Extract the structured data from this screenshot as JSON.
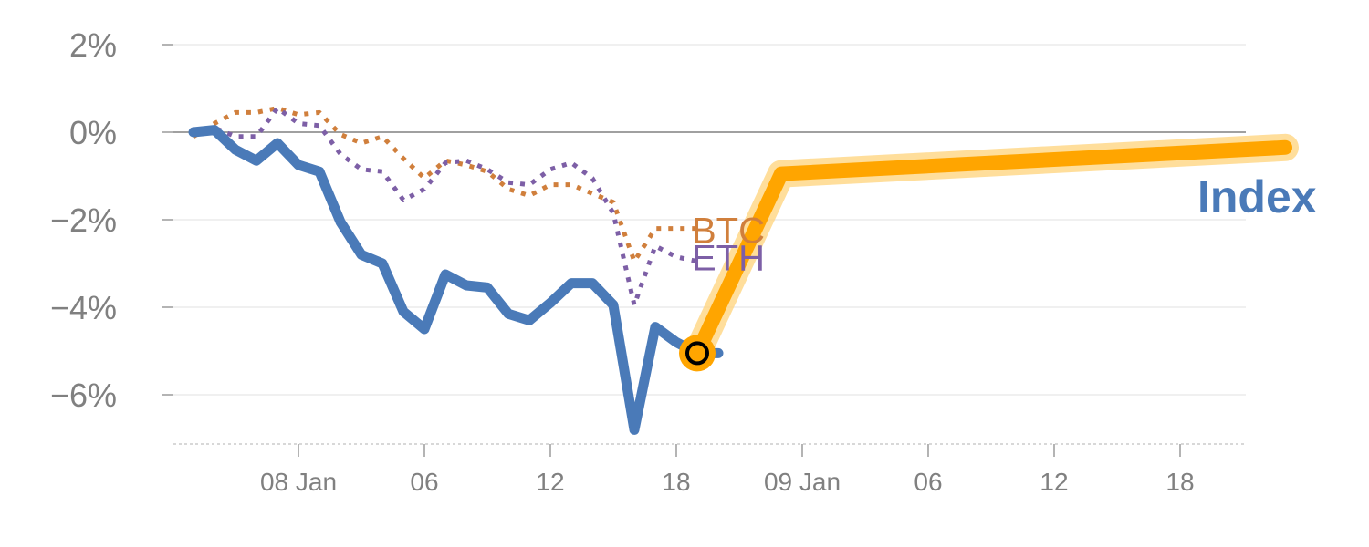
{
  "chart_data": {
    "type": "line",
    "title": "",
    "xlabel": "",
    "ylabel": "",
    "ylim": [
      -7.2,
      2.0
    ],
    "xlim": [
      0,
      52
    ],
    "y_ticks": [
      {
        "value": 2,
        "label": "2%"
      },
      {
        "value": 0,
        "label": "0%"
      },
      {
        "value": -2,
        "label": "−2%"
      },
      {
        "value": -4,
        "label": "−4%"
      },
      {
        "value": -6,
        "label": "−6%"
      }
    ],
    "x_ticks": [
      {
        "x": 5,
        "label": "08 Jan"
      },
      {
        "x": 11,
        "label": "06"
      },
      {
        "x": 17,
        "label": "12"
      },
      {
        "x": 23,
        "label": "18"
      },
      {
        "x": 29,
        "label": "09 Jan"
      },
      {
        "x": 35,
        "label": "06"
      },
      {
        "x": 41,
        "label": "12"
      },
      {
        "x": 47,
        "label": "18"
      }
    ],
    "series": [
      {
        "name": "Index",
        "label": "Index",
        "color": "#4a7ab8",
        "style": "solid",
        "x": [
          0,
          1,
          2,
          3,
          4,
          5,
          6,
          7,
          8,
          9,
          10,
          11,
          12,
          13,
          14,
          15,
          16,
          17,
          18,
          19,
          20,
          21,
          22,
          23,
          24,
          25
        ],
        "values": [
          0.0,
          0.05,
          -0.4,
          -0.65,
          -0.25,
          -0.75,
          -0.9,
          -2.05,
          -2.8,
          -3.0,
          -4.1,
          -4.5,
          -3.25,
          -3.5,
          -3.55,
          -4.15,
          -4.3,
          -3.9,
          -3.45,
          -3.45,
          -3.95,
          -6.8,
          -4.45,
          -4.8,
          -5.05,
          -5.05
        ]
      },
      {
        "name": "BTC",
        "label": "BTC",
        "color": "#d07f3c",
        "style": "dotted",
        "x": [
          0,
          1,
          2,
          3,
          4,
          5,
          6,
          7,
          8,
          9,
          10,
          11,
          12,
          13,
          14,
          15,
          16,
          17,
          18,
          19,
          20,
          21,
          22,
          23,
          24
        ],
        "values": [
          -0.1,
          0.2,
          0.45,
          0.45,
          0.55,
          0.4,
          0.45,
          -0.05,
          -0.25,
          -0.1,
          -0.6,
          -1.05,
          -0.65,
          -0.75,
          -0.9,
          -1.3,
          -1.45,
          -1.2,
          -1.2,
          -1.4,
          -1.6,
          -2.95,
          -2.2,
          -2.2,
          -2.2
        ]
      },
      {
        "name": "ETH",
        "label": "ETH",
        "color": "#7d5fa6",
        "style": "dotted",
        "x": [
          0,
          1,
          2,
          3,
          4,
          5,
          6,
          7,
          8,
          9,
          10,
          11,
          12,
          13,
          14,
          15,
          16,
          17,
          18,
          19,
          20,
          21,
          22,
          23,
          24
        ],
        "values": [
          0.0,
          0.1,
          -0.1,
          -0.1,
          0.55,
          0.2,
          0.15,
          -0.5,
          -0.85,
          -0.9,
          -1.55,
          -1.3,
          -0.7,
          -0.65,
          -0.85,
          -1.15,
          -1.2,
          -0.85,
          -0.7,
          -1.05,
          -1.85,
          -3.95,
          -2.6,
          -2.85,
          -2.95
        ]
      },
      {
        "name": "Index (continuation)",
        "label": "",
        "color": "#ffa500",
        "style": "highlight",
        "x": [
          24,
          28,
          52
        ],
        "values": [
          -5.05,
          -0.95,
          -0.35
        ]
      }
    ],
    "marker": {
      "x": 24,
      "value": -5.05
    },
    "zero_line": 0,
    "grid": true
  }
}
